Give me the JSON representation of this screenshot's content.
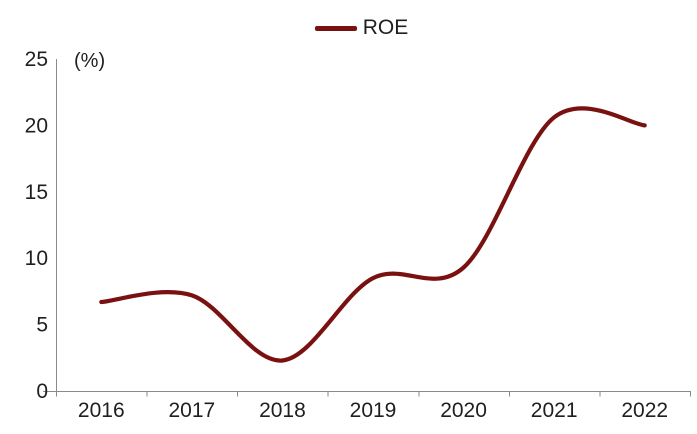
{
  "legend": {
    "label": "ROE"
  },
  "chart_data": {
    "type": "line",
    "title": "",
    "smooth": true,
    "categories": [
      "2016",
      "2017",
      "2018",
      "2019",
      "2020",
      "2021",
      "2022"
    ],
    "series": [
      {
        "name": "ROE",
        "values": [
          6.7,
          7.2,
          2.3,
          8.5,
          9.3,
          20.6,
          20.0
        ]
      }
    ],
    "xlabel": "",
    "ylabel": "(%)",
    "ylim": [
      0,
      25
    ],
    "yticks": [
      0,
      5,
      10,
      15,
      20,
      25
    ],
    "grid": false,
    "legend_position": "top-center",
    "colors": {
      "line": "#7a1111",
      "axis": "#8a8a8a",
      "text": "#1f1f1f"
    }
  }
}
